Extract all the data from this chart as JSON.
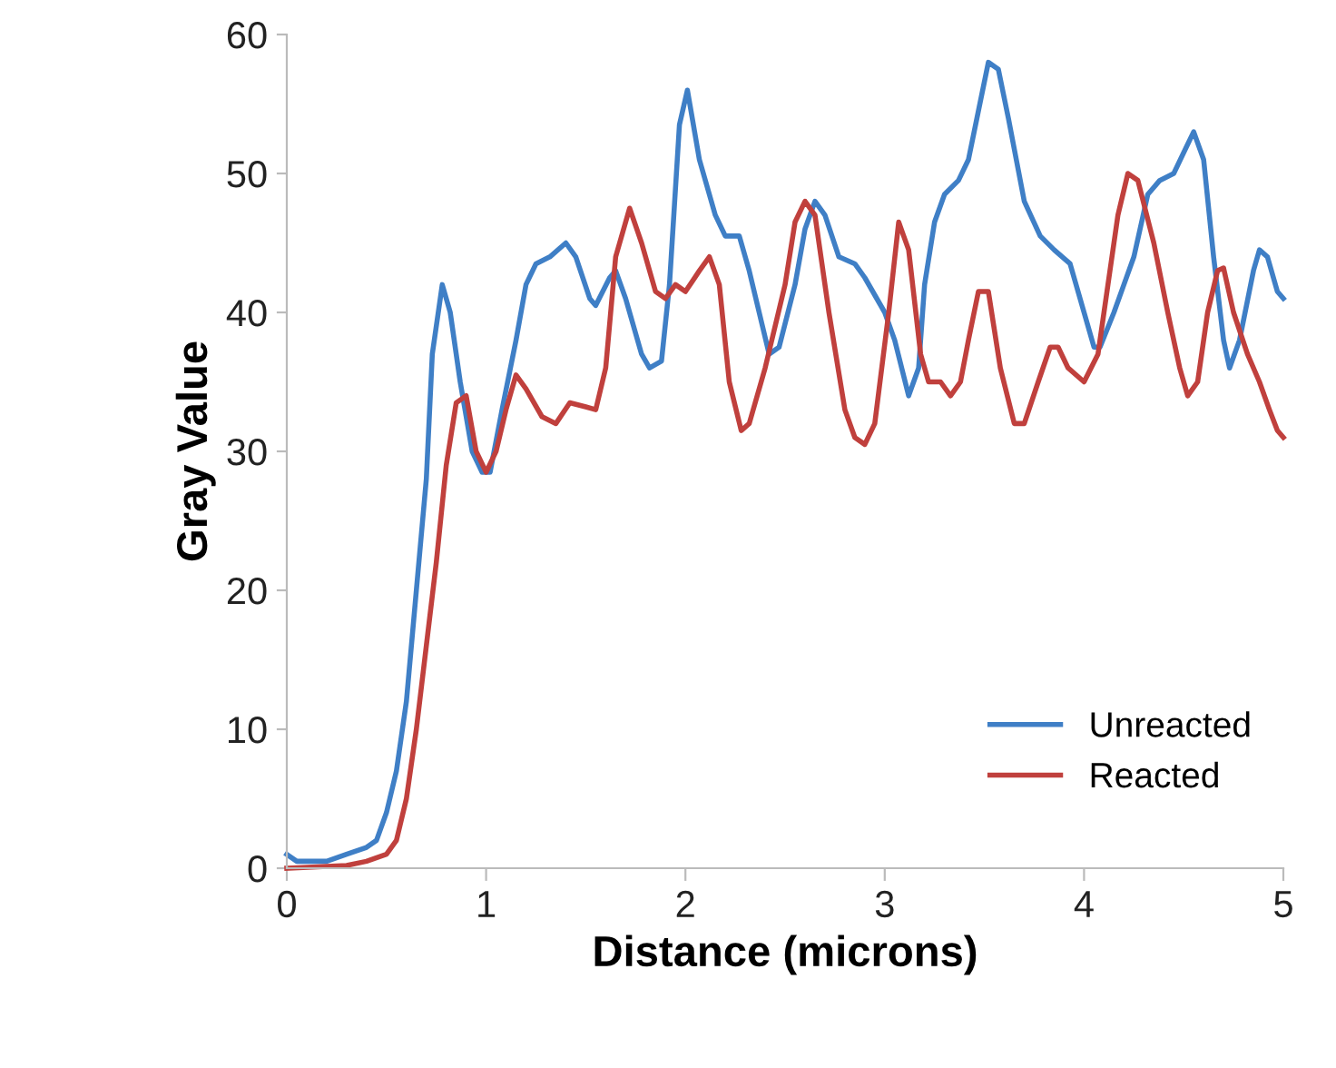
{
  "chart_data": {
    "type": "line",
    "xlabel": "Distance (microns)",
    "ylabel": "Gray Value",
    "xlim": [
      0,
      5
    ],
    "ylim": [
      0,
      60
    ],
    "xticks": [
      0,
      1,
      2,
      3,
      4,
      5
    ],
    "yticks": [
      0,
      10,
      20,
      30,
      40,
      50,
      60
    ],
    "grid": false,
    "legend": "bottom right",
    "marker": "none",
    "line_style": "solid",
    "series": [
      {
        "name": "Unreacted",
        "color": "#3f7fc6",
        "x": [
          0,
          0.05,
          0.2,
          0.3,
          0.4,
          0.45,
          0.5,
          0.55,
          0.6,
          0.65,
          0.7,
          0.73,
          0.78,
          0.82,
          0.87,
          0.93,
          0.98,
          1.02,
          1.08,
          1.15,
          1.2,
          1.25,
          1.32,
          1.4,
          1.45,
          1.52,
          1.55,
          1.62,
          1.65,
          1.7,
          1.78,
          1.82,
          1.88,
          1.92,
          1.97,
          2.01,
          2.07,
          2.15,
          2.2,
          2.27,
          2.32,
          2.42,
          2.47,
          2.55,
          2.6,
          2.65,
          2.7,
          2.77,
          2.85,
          2.9,
          3.0,
          3.05,
          3.12,
          3.17,
          3.2,
          3.25,
          3.3,
          3.37,
          3.42,
          3.47,
          3.52,
          3.57,
          3.62,
          3.7,
          3.78,
          3.85,
          3.93,
          4.0,
          4.05,
          4.08,
          4.15,
          4.2,
          4.25,
          4.32,
          4.38,
          4.45,
          4.5,
          4.55,
          4.6,
          4.65,
          4.7,
          4.73,
          4.78,
          4.85,
          4.88,
          4.92,
          4.97,
          5.0
        ],
        "values": [
          1,
          0.5,
          0.5,
          1,
          1.5,
          2,
          4,
          7,
          12,
          20,
          28,
          37,
          42,
          40,
          35,
          30,
          28.5,
          28.5,
          33,
          38,
          42,
          43.5,
          44,
          45,
          44,
          41,
          40.5,
          42.5,
          43,
          41,
          37,
          36,
          36.5,
          42,
          53.5,
          56,
          51,
          47,
          45.5,
          45.5,
          43,
          37,
          37.5,
          42,
          46,
          48,
          47,
          44,
          43.5,
          42.5,
          40,
          38,
          34,
          36,
          42,
          46.5,
          48.5,
          49.5,
          51,
          54.5,
          58,
          57.5,
          54,
          48,
          45.5,
          44.5,
          43.5,
          40,
          37.5,
          37.5,
          40,
          42,
          44,
          48.5,
          49.5,
          50,
          51.5,
          53,
          51,
          44,
          38,
          36,
          38,
          43,
          44.5,
          44,
          41.5,
          41
        ]
      },
      {
        "name": "Reacted",
        "color": "#c0403d",
        "x": [
          0,
          0.3,
          0.4,
          0.5,
          0.55,
          0.6,
          0.65,
          0.7,
          0.75,
          0.8,
          0.85,
          0.9,
          0.95,
          1.0,
          1.05,
          1.1,
          1.15,
          1.2,
          1.28,
          1.35,
          1.42,
          1.5,
          1.55,
          1.6,
          1.65,
          1.72,
          1.78,
          1.85,
          1.9,
          1.95,
          2.0,
          2.07,
          2.12,
          2.17,
          2.22,
          2.28,
          2.32,
          2.4,
          2.5,
          2.55,
          2.6,
          2.65,
          2.72,
          2.8,
          2.85,
          2.9,
          2.95,
          3.02,
          3.07,
          3.12,
          3.18,
          3.22,
          3.28,
          3.33,
          3.38,
          3.42,
          3.47,
          3.52,
          3.58,
          3.65,
          3.7,
          3.77,
          3.83,
          3.87,
          3.92,
          4.0,
          4.07,
          4.12,
          4.17,
          4.22,
          4.27,
          4.35,
          4.42,
          4.48,
          4.52,
          4.57,
          4.62,
          4.67,
          4.7,
          4.75,
          4.82,
          4.88,
          4.93,
          4.97,
          5.0
        ],
        "values": [
          0,
          0.2,
          0.5,
          1,
          2,
          5,
          10,
          16,
          22,
          29,
          33.5,
          34,
          30,
          28.5,
          30,
          33,
          35.5,
          34.5,
          32.5,
          32,
          33.5,
          33.2,
          33,
          36,
          44,
          47.5,
          45,
          41.5,
          41,
          42,
          41.5,
          43,
          44,
          42,
          35,
          31.5,
          32,
          36,
          42,
          46.5,
          48,
          47,
          40,
          33,
          31,
          30.5,
          32,
          40,
          46.5,
          44.5,
          37,
          35,
          35,
          34,
          35,
          38,
          41.5,
          41.5,
          36,
          32,
          32,
          35,
          37.5,
          37.5,
          36,
          35,
          37,
          42,
          47,
          50,
          49.5,
          45,
          40,
          36,
          34,
          35,
          40,
          43,
          43.2,
          40,
          37,
          35,
          33,
          31.5,
          31
        ]
      }
    ]
  }
}
